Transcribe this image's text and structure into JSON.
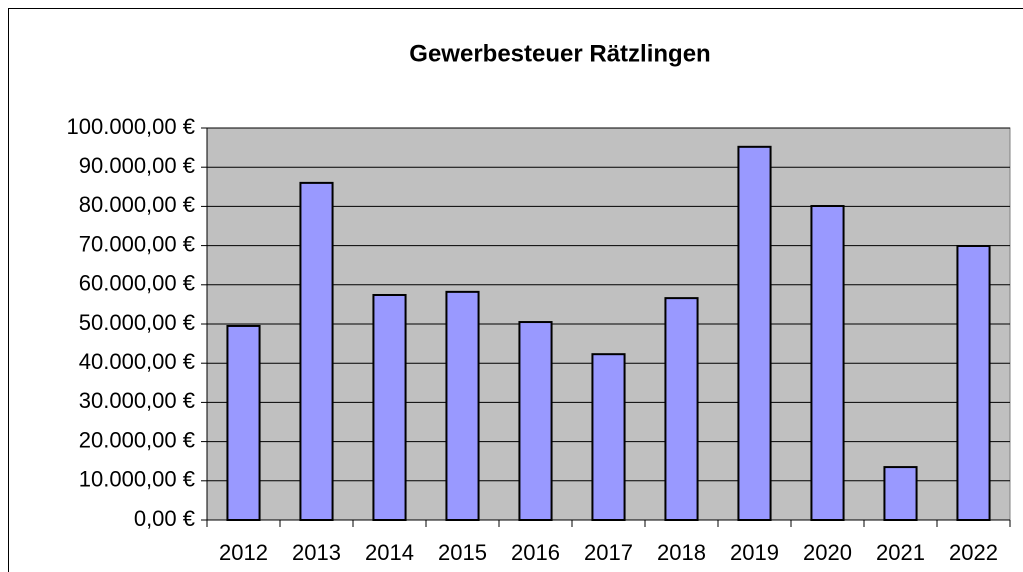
{
  "chart_data": {
    "type": "bar",
    "title": "Gewerbesteuer Rätzlingen",
    "categories": [
      "2012",
      "2013",
      "2014",
      "2015",
      "2016",
      "2017",
      "2018",
      "2019",
      "2020",
      "2021",
      "2022"
    ],
    "values": [
      49500,
      86000,
      57400,
      58200,
      50500,
      42300,
      56600,
      95200,
      80100,
      13500,
      69900
    ],
    "color": "#9999ff",
    "ylim": [
      0,
      100000
    ],
    "yticks": [
      {
        "value": 0,
        "label": "0,00 €"
      },
      {
        "value": 10000,
        "label": "10.000,00 €"
      },
      {
        "value": 20000,
        "label": "20.000,00 €"
      },
      {
        "value": 30000,
        "label": "30.000,00 €"
      },
      {
        "value": 40000,
        "label": "40.000,00 €"
      },
      {
        "value": 50000,
        "label": "50.000,00 €"
      },
      {
        "value": 60000,
        "label": "60.000,00 €"
      },
      {
        "value": 70000,
        "label": "70.000,00 €"
      },
      {
        "value": 80000,
        "label": "80.000,00 €"
      },
      {
        "value": 90000,
        "label": "90.000,00 €"
      },
      {
        "value": 100000,
        "label": "100.000,00 €"
      }
    ],
    "grid": true
  }
}
